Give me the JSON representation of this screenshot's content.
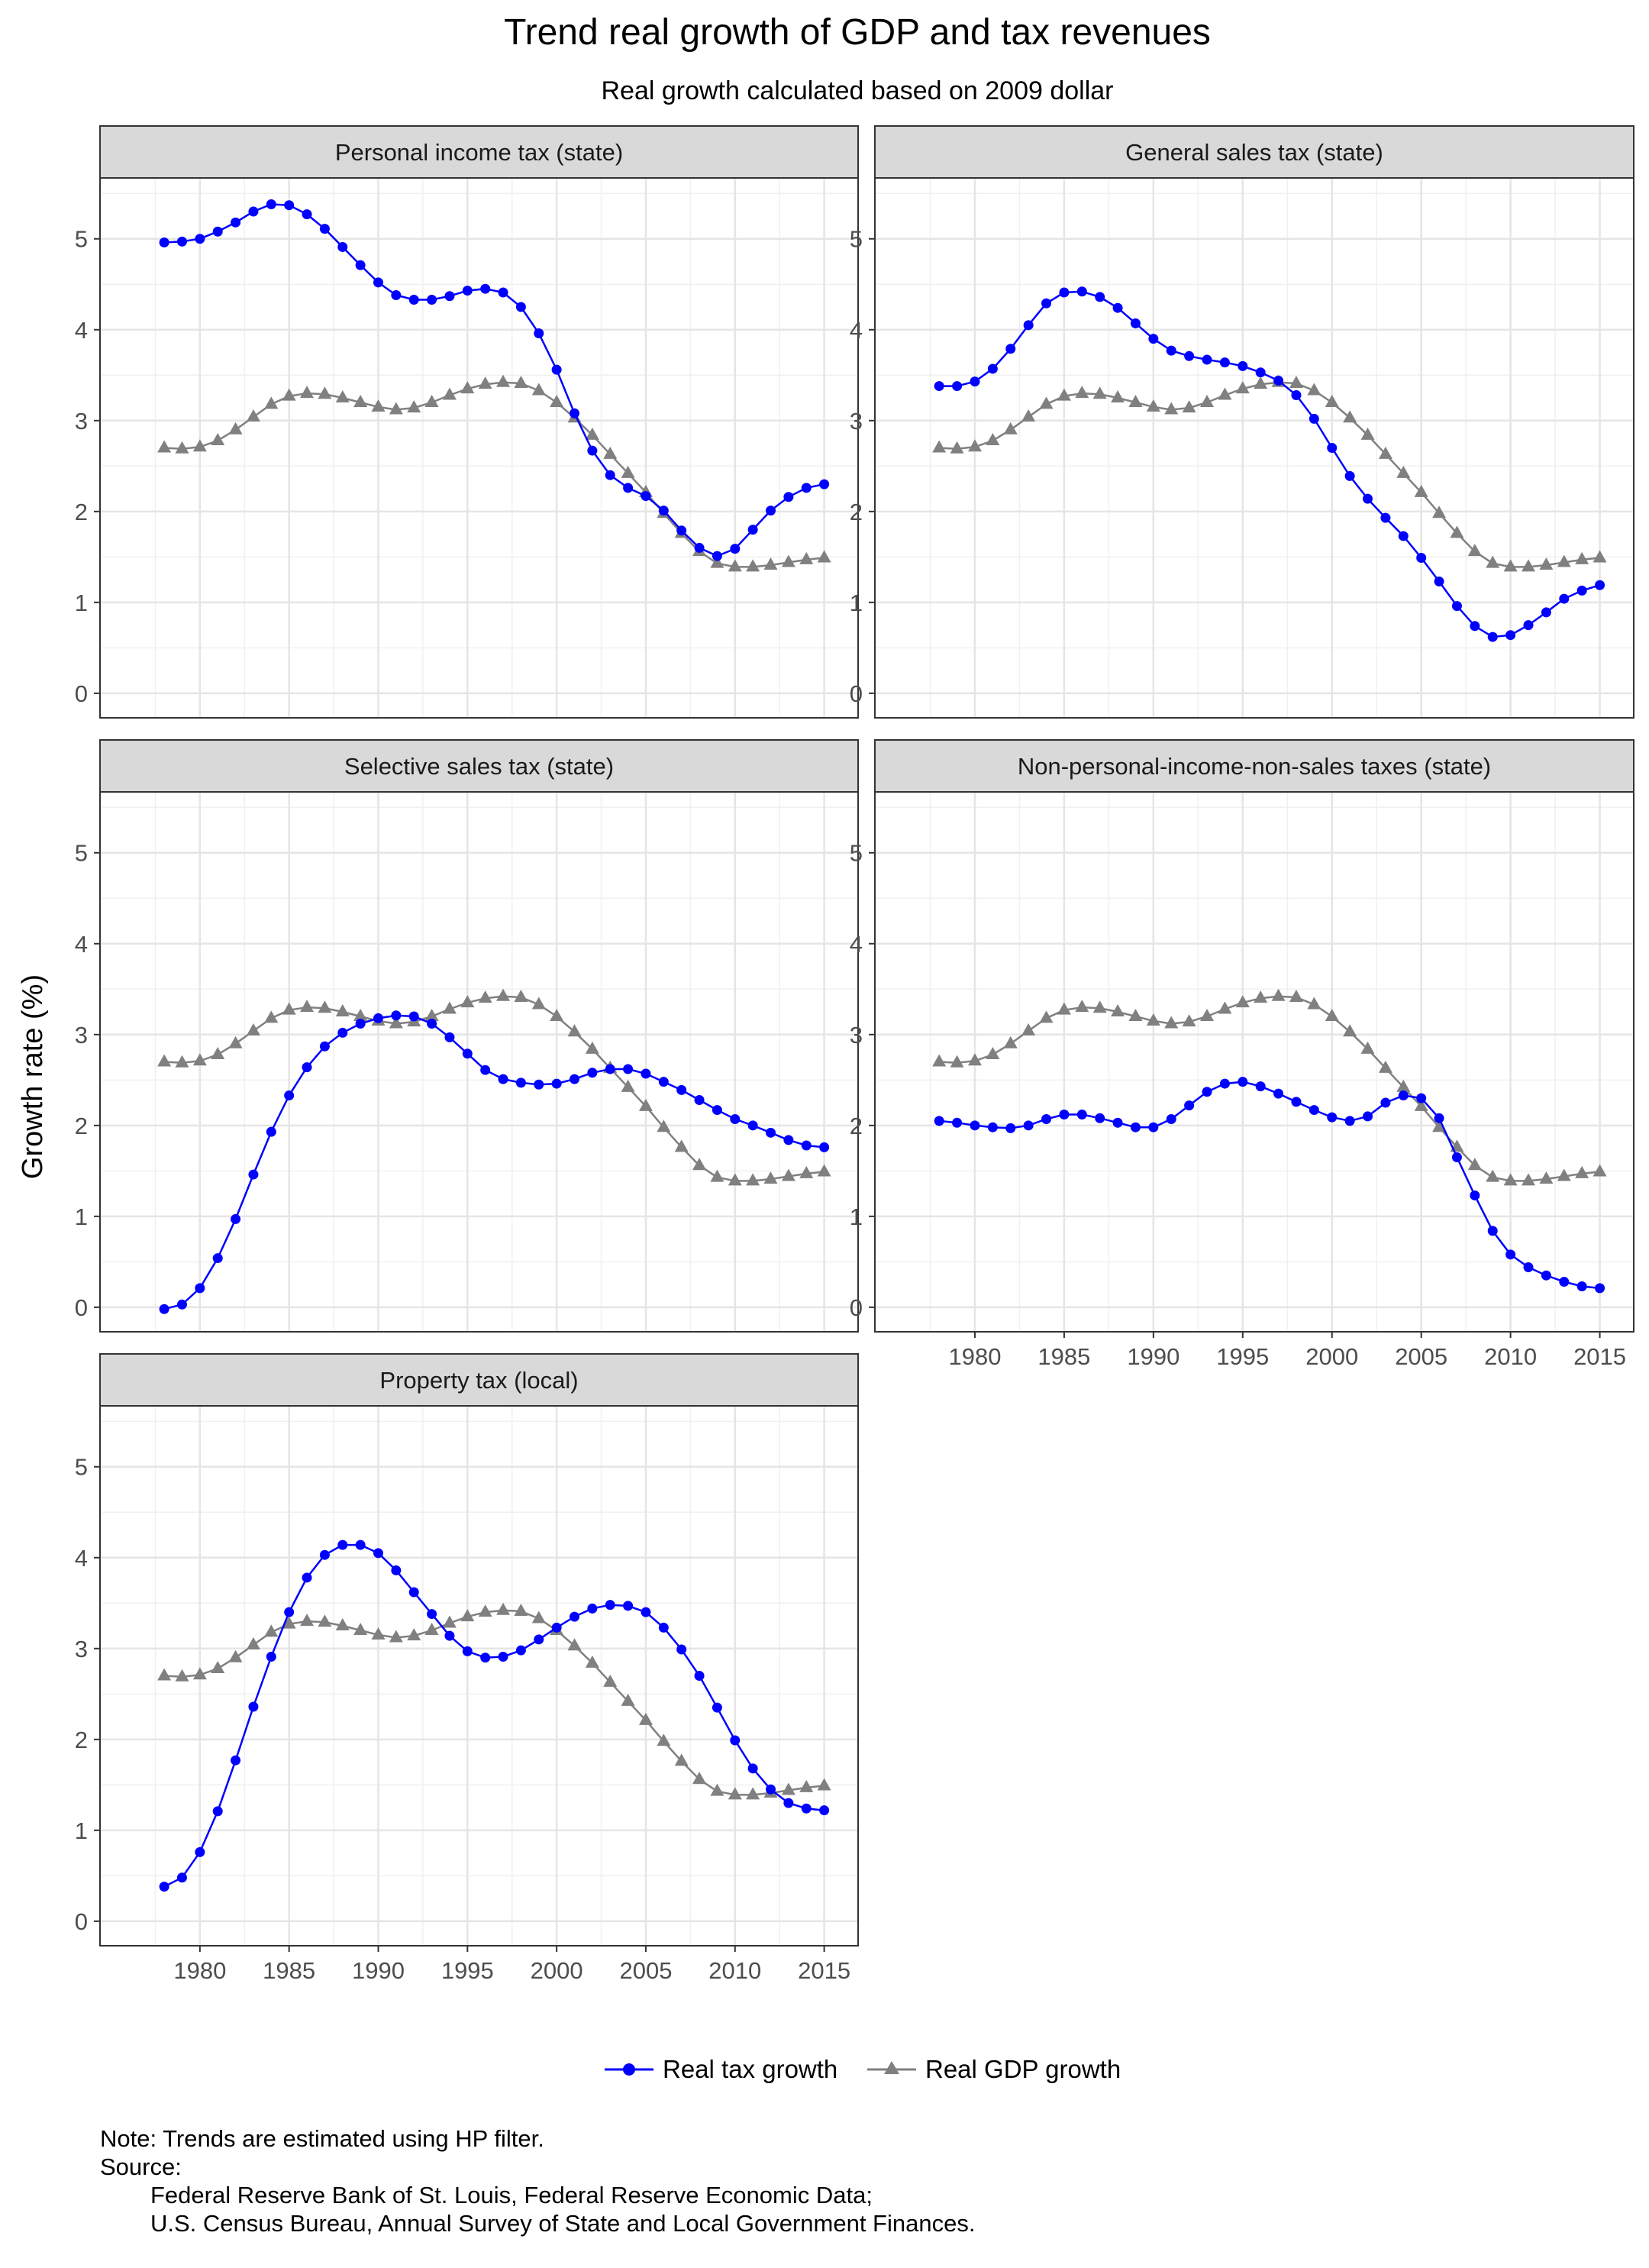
{
  "title": "Trend real growth of GDP and tax revenues",
  "subtitle": "Real growth calculated based on 2009 dollar",
  "ylabel": "Growth rate (%)",
  "legend": [
    {
      "label": "Real tax growth",
      "color": "#0000FF",
      "shape": "circle"
    },
    {
      "label": "Real GDP growth",
      "color": "#808080",
      "shape": "triangle"
    }
  ],
  "note": {
    "line1": "Note: Trends are estimated using HP filter.",
    "line2": "Source:",
    "line3": "Federal Reserve Bank of St. Louis, Federal Reserve Economic Data;",
    "line4": "U.S. Census Bureau, Annual Survey of State and Local Government Finances."
  },
  "chart_data": {
    "type": "line",
    "facet_layout": "2 columns x 3 rows",
    "x": [
      1978,
      1979,
      1980,
      1981,
      1982,
      1983,
      1984,
      1985,
      1986,
      1987,
      1988,
      1989,
      1990,
      1991,
      1992,
      1993,
      1994,
      1995,
      1996,
      1997,
      1998,
      1999,
      2000,
      2001,
      2002,
      2003,
      2004,
      2005,
      2006,
      2007,
      2008,
      2009,
      2010,
      2011,
      2012,
      2013,
      2014,
      2015
    ],
    "xlim": [
      1974.4,
      2016.9
    ],
    "xticks": [
      1980,
      1985,
      1990,
      1995,
      2000,
      2005,
      2010,
      2015
    ],
    "ylim": [
      -0.27,
      5.67
    ],
    "yticks": [
      0,
      1,
      2,
      3,
      4,
      5
    ],
    "grid": true,
    "legend_position": "bottom",
    "gdp_series": {
      "name": "Real GDP growth",
      "values": [
        2.7,
        2.69,
        2.71,
        2.78,
        2.9,
        3.04,
        3.18,
        3.27,
        3.3,
        3.29,
        3.25,
        3.2,
        3.15,
        3.12,
        3.14,
        3.2,
        3.28,
        3.35,
        3.4,
        3.42,
        3.41,
        3.33,
        3.2,
        3.03,
        2.84,
        2.63,
        2.42,
        2.21,
        1.98,
        1.76,
        1.56,
        1.43,
        1.39,
        1.39,
        1.41,
        1.44,
        1.47,
        1.49
      ]
    },
    "panels": [
      {
        "title": "Personal income tax (state)",
        "tax_values": [
          4.96,
          4.97,
          5.0,
          5.08,
          5.18,
          5.3,
          5.38,
          5.37,
          5.27,
          5.11,
          4.91,
          4.71,
          4.52,
          4.38,
          4.33,
          4.33,
          4.37,
          4.43,
          4.45,
          4.41,
          4.25,
          3.96,
          3.56,
          3.08,
          2.67,
          2.4,
          2.26,
          2.17,
          2.01,
          1.79,
          1.6,
          1.51,
          1.59,
          1.8,
          2.01,
          2.16,
          2.26,
          2.3
        ]
      },
      {
        "title": "General sales tax (state)",
        "tax_values": [
          3.38,
          3.38,
          3.43,
          3.57,
          3.79,
          4.05,
          4.29,
          4.41,
          4.42,
          4.36,
          4.24,
          4.07,
          3.9,
          3.77,
          3.71,
          3.67,
          3.64,
          3.6,
          3.53,
          3.44,
          3.28,
          3.02,
          2.7,
          2.39,
          2.14,
          1.93,
          1.73,
          1.49,
          1.23,
          0.96,
          0.74,
          0.62,
          0.64,
          0.75,
          0.89,
          1.04,
          1.13,
          1.19
        ]
      },
      {
        "title": "Selective sales tax (state)",
        "tax_values": [
          -0.02,
          0.03,
          0.21,
          0.54,
          0.97,
          1.46,
          1.93,
          2.33,
          2.64,
          2.87,
          3.02,
          3.12,
          3.18,
          3.21,
          3.2,
          3.12,
          2.97,
          2.79,
          2.61,
          2.51,
          2.47,
          2.45,
          2.46,
          2.51,
          2.58,
          2.62,
          2.62,
          2.57,
          2.48,
          2.39,
          2.28,
          2.17,
          2.07,
          2.0,
          1.92,
          1.84,
          1.78,
          1.76
        ]
      },
      {
        "title": "Non-personal-income-non-sales taxes (state)",
        "tax_values": [
          2.05,
          2.03,
          2.0,
          1.98,
          1.97,
          2.0,
          2.07,
          2.12,
          2.12,
          2.08,
          2.03,
          1.98,
          1.98,
          2.07,
          2.22,
          2.37,
          2.46,
          2.48,
          2.43,
          2.35,
          2.26,
          2.17,
          2.09,
          2.05,
          2.1,
          2.25,
          2.33,
          2.3,
          2.08,
          1.65,
          1.23,
          0.84,
          0.58,
          0.44,
          0.35,
          0.28,
          0.23,
          0.21
        ]
      },
      {
        "title": "Property tax (local)",
        "tax_values": [
          0.38,
          0.48,
          0.76,
          1.21,
          1.77,
          2.36,
          2.91,
          3.4,
          3.78,
          4.03,
          4.14,
          4.14,
          4.05,
          3.86,
          3.62,
          3.38,
          3.14,
          2.97,
          2.9,
          2.91,
          2.98,
          3.1,
          3.23,
          3.35,
          3.44,
          3.48,
          3.47,
          3.4,
          3.23,
          2.99,
          2.7,
          2.35,
          1.99,
          1.68,
          1.45,
          1.3,
          1.24,
          1.22
        ]
      }
    ]
  }
}
